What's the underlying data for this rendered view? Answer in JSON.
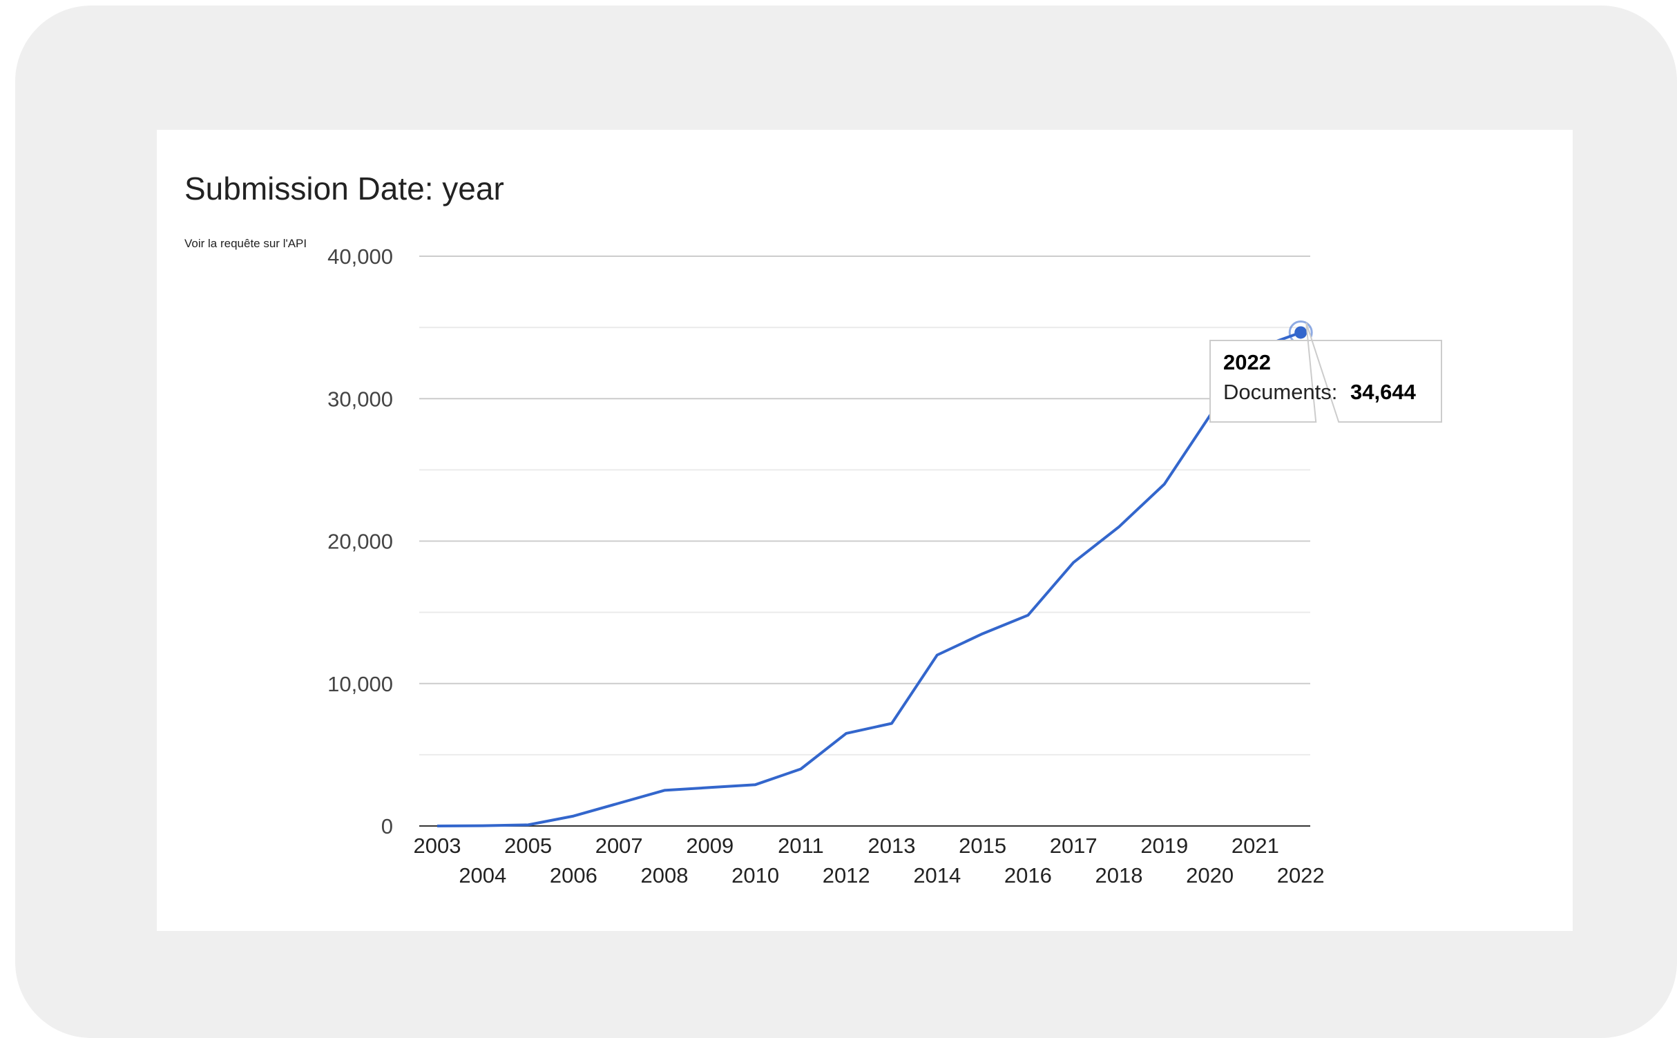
{
  "card": {
    "title": "Submission Date: year",
    "api_link": "Voir la requête sur l'API"
  },
  "colors": {
    "line": "#3366cc",
    "gridline": "#cccccc",
    "minor_gridline": "#ebebeb",
    "frame": "#efefef"
  },
  "chart_data": {
    "type": "line",
    "title": "Submission Date: year",
    "xlabel": "",
    "ylabel": "",
    "x": [
      2003,
      2004,
      2005,
      2006,
      2007,
      2008,
      2009,
      2010,
      2011,
      2012,
      2013,
      2014,
      2015,
      2016,
      2017,
      2018,
      2019,
      2020,
      2021,
      2022
    ],
    "series": [
      {
        "name": "Documents",
        "values": [
          0,
          20,
          80,
          700,
          1600,
          2500,
          2700,
          2900,
          4000,
          6500,
          7200,
          12000,
          13500,
          14800,
          18500,
          21000,
          24000,
          28800,
          33500,
          34644
        ]
      }
    ],
    "ylim": [
      0,
      40000
    ],
    "yticks": [
      "0",
      "10,000",
      "20,000",
      "30,000",
      "40,000"
    ],
    "xticks": [
      "2003",
      "2004",
      "2005",
      "2006",
      "2007",
      "2008",
      "2009",
      "2010",
      "2011",
      "2012",
      "2013",
      "2014",
      "2015",
      "2016",
      "2017",
      "2018",
      "2019",
      "2020",
      "2021",
      "2022"
    ],
    "grid": true,
    "legend": "none",
    "tooltip": {
      "year": "2022",
      "label": "Documents:",
      "value": "34,644"
    }
  }
}
